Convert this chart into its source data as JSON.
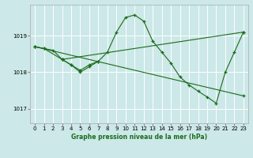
{
  "title": "Graphe pression niveau de la mer (hPa)",
  "bg_color": "#cce8e8",
  "grid_color": "#ffffff",
  "line_color": "#1a6b1a",
  "marker": "+",
  "xlim": [
    -0.5,
    23.5
  ],
  "ylim": [
    1016.6,
    1019.85
  ],
  "yticks": [
    1017,
    1018,
    1019
  ],
  "xticks": [
    0,
    1,
    2,
    3,
    4,
    5,
    6,
    7,
    8,
    9,
    10,
    11,
    12,
    13,
    14,
    15,
    16,
    17,
    18,
    19,
    20,
    21,
    22,
    23
  ],
  "series": [
    {
      "x": [
        0,
        1,
        3,
        4,
        5,
        6,
        7,
        8,
        9,
        10,
        11,
        12,
        13,
        14,
        15,
        16,
        17,
        18,
        19,
        20,
        21,
        22,
        23
      ],
      "y": [
        1018.7,
        1018.65,
        1018.35,
        1018.2,
        1018.05,
        1018.2,
        1018.3,
        1018.55,
        1019.1,
        1019.5,
        1019.57,
        1019.4,
        1018.85,
        1018.55,
        1018.25,
        1017.87,
        1017.65,
        1017.48,
        1017.32,
        1017.15,
        1018.0,
        1018.55,
        1019.1
      ]
    },
    {
      "x": [
        0,
        23
      ],
      "y": [
        1018.7,
        1017.35
      ]
    },
    {
      "x": [
        3,
        23
      ],
      "y": [
        1018.35,
        1019.1
      ]
    },
    {
      "x": [
        0,
        1,
        2,
        3,
        4,
        5,
        6,
        7
      ],
      "y": [
        1018.7,
        1018.65,
        1018.6,
        1018.35,
        1018.2,
        1018.0,
        1018.15,
        1018.3
      ]
    }
  ]
}
